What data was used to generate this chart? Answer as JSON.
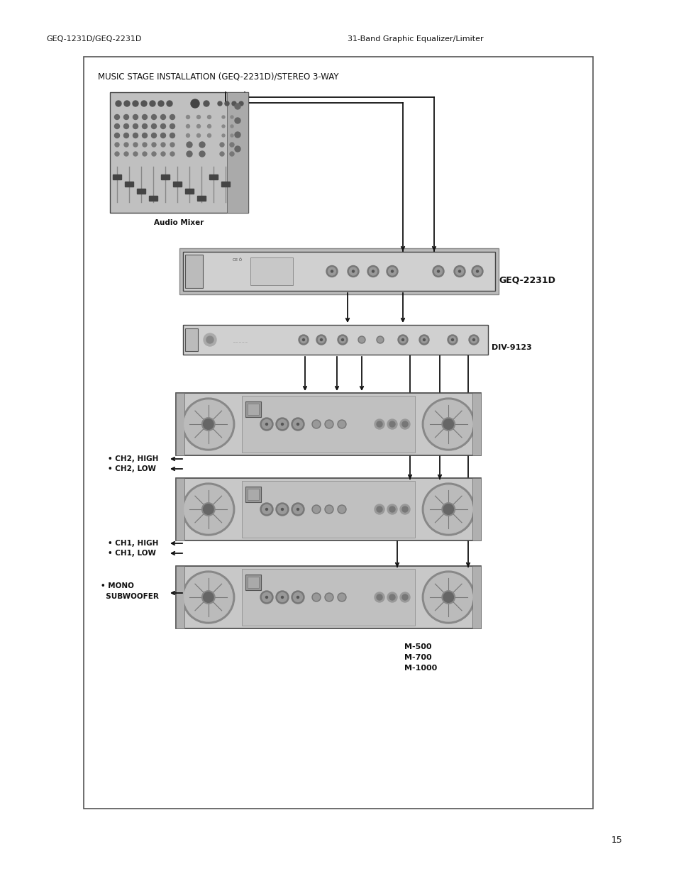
{
  "page_title_left": "GEQ-1231D/GEQ-2231D",
  "page_title_right": "31-Band Graphic Equalizer/Limiter",
  "page_number": "15",
  "diagram_title": "MUSIC STAGE INSTALLATION (GEQ-2231D)/STEREO 3-WAY",
  "label_audio_mixer": "Audio Mixer",
  "label_geq": "GEQ-2231D",
  "label_div": "DIV-9123",
  "label_ch2_high": "• CH2, HIGH",
  "label_ch2_low": "• CH2, LOW",
  "label_ch1_high": "• CH1, HIGH",
  "label_ch1_low": "• CH1, LOW",
  "label_mono": "• MONO",
  "label_subwoofer": "  SUBWOOFER",
  "label_amplifiers": "M-500\nM-700\nM-1000",
  "bg_color": "#ffffff",
  "dark_color": "#111111",
  "border_color": "#444444"
}
